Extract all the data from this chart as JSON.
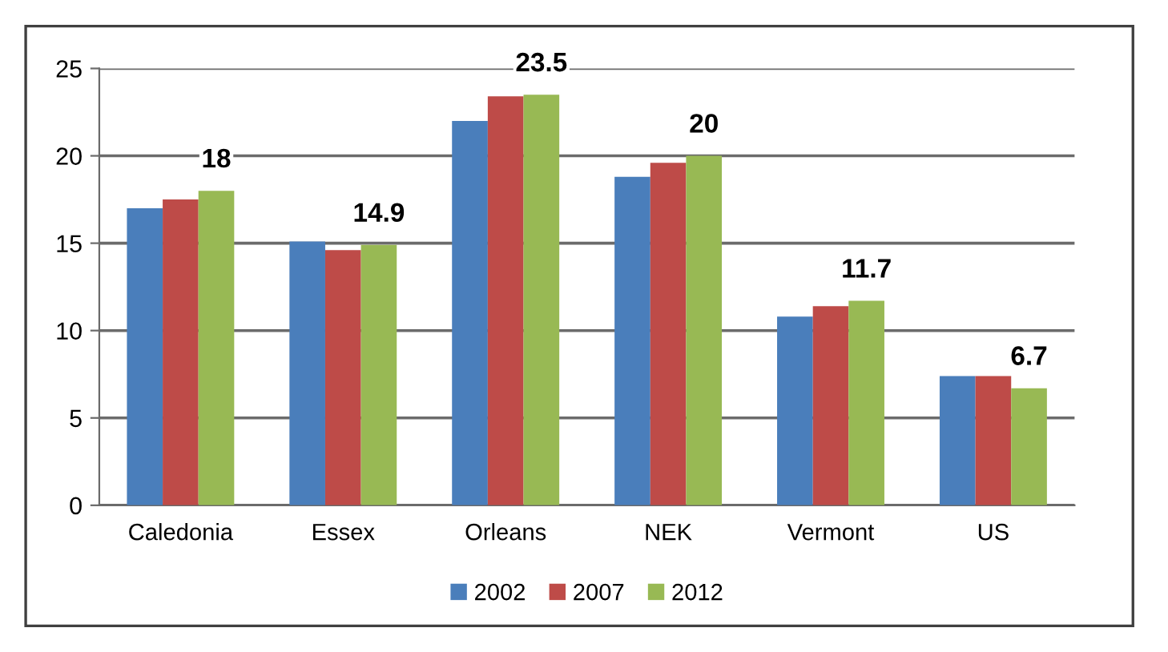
{
  "chart_data": {
    "type": "bar",
    "categories": [
      "Caledonia",
      "Essex",
      "Orleans",
      "NEK",
      "Vermont",
      "US"
    ],
    "series": [
      {
        "name": "2002",
        "color": "#4a7ebb",
        "values": [
          17,
          15.1,
          22,
          18.8,
          10.8,
          7.4
        ]
      },
      {
        "name": "2007",
        "color": "#be4b48",
        "values": [
          17.5,
          14.6,
          23.4,
          19.6,
          11.4,
          7.4
        ]
      },
      {
        "name": "2012",
        "color": "#98b954",
        "values": [
          18,
          14.9,
          23.5,
          20,
          11.7,
          6.7
        ],
        "value_labels": [
          "18",
          "14.9",
          "23.5",
          "20",
          "11.7",
          "6.7"
        ]
      }
    ],
    "ylim": [
      0,
      25
    ],
    "yticks": [
      0,
      5,
      10,
      15,
      20,
      25
    ],
    "grid": "y",
    "legend": "bottom"
  }
}
